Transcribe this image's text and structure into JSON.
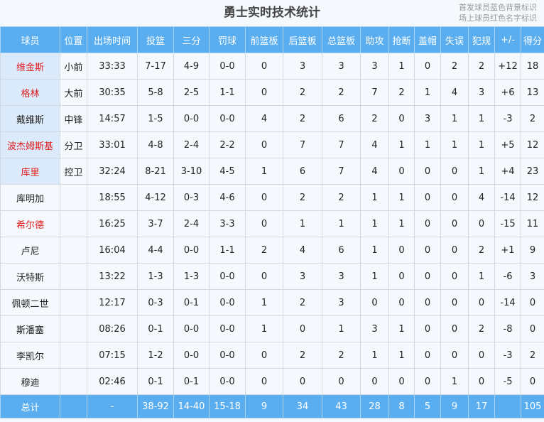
{
  "title": "勇士实时技术统计",
  "notes": [
    "首发球员蓝色背景标识",
    "场上球员红色名字标识"
  ],
  "colors": {
    "header": "#5aaef0",
    "starter_bg": "#dcebfb",
    "on_court_name": "#e01e1e"
  },
  "columns": [
    "球员",
    "位置",
    "出场时间",
    "投篮",
    "三分",
    "罚球",
    "前篮板",
    "后篮板",
    "总篮板",
    "助攻",
    "抢断",
    "盖帽",
    "失误",
    "犯规",
    "+/-",
    "得分"
  ],
  "rows": [
    {
      "starter": true,
      "on_court": true,
      "cells": [
        "维金斯",
        "小前",
        "33:33",
        "7-17",
        "4-9",
        "0-0",
        "0",
        "3",
        "3",
        "3",
        "1",
        "0",
        "2",
        "2",
        "+12",
        "18"
      ]
    },
    {
      "starter": true,
      "on_court": true,
      "cells": [
        "格林",
        "大前",
        "30:35",
        "5-8",
        "2-5",
        "1-1",
        "0",
        "2",
        "2",
        "7",
        "2",
        "1",
        "4",
        "3",
        "+6",
        "13"
      ]
    },
    {
      "starter": true,
      "on_court": false,
      "cells": [
        "戴维斯",
        "中锋",
        "14:57",
        "1-5",
        "0-0",
        "0-0",
        "4",
        "2",
        "6",
        "2",
        "0",
        "3",
        "1",
        "1",
        "-3",
        "2"
      ]
    },
    {
      "starter": true,
      "on_court": true,
      "cells": [
        "波杰姆斯基",
        "分卫",
        "33:01",
        "4-8",
        "2-4",
        "2-2",
        "0",
        "7",
        "7",
        "4",
        "1",
        "1",
        "1",
        "1",
        "+5",
        "12"
      ]
    },
    {
      "starter": true,
      "on_court": true,
      "cells": [
        "库里",
        "控卫",
        "32:24",
        "8-21",
        "3-10",
        "4-5",
        "1",
        "6",
        "7",
        "4",
        "0",
        "0",
        "0",
        "1",
        "+4",
        "23"
      ]
    },
    {
      "starter": false,
      "on_court": false,
      "cells": [
        "库明加",
        "",
        "18:55",
        "4-12",
        "0-3",
        "4-6",
        "0",
        "2",
        "2",
        "1",
        "1",
        "0",
        "0",
        "4",
        "-14",
        "12"
      ]
    },
    {
      "starter": false,
      "on_court": true,
      "cells": [
        "希尔德",
        "",
        "16:25",
        "3-7",
        "2-4",
        "3-3",
        "0",
        "1",
        "1",
        "1",
        "1",
        "0",
        "0",
        "0",
        "-15",
        "11"
      ]
    },
    {
      "starter": false,
      "on_court": false,
      "cells": [
        "卢尼",
        "",
        "16:04",
        "4-4",
        "0-0",
        "1-1",
        "2",
        "4",
        "6",
        "1",
        "0",
        "0",
        "0",
        "2",
        "+1",
        "9"
      ]
    },
    {
      "starter": false,
      "on_court": false,
      "cells": [
        "沃特斯",
        "",
        "13:22",
        "1-3",
        "1-3",
        "0-0",
        "0",
        "3",
        "3",
        "1",
        "0",
        "0",
        "0",
        "1",
        "-6",
        "3"
      ]
    },
    {
      "starter": false,
      "on_court": false,
      "cells": [
        "佩顿二世",
        "",
        "12:17",
        "0-3",
        "0-1",
        "0-0",
        "1",
        "2",
        "3",
        "0",
        "0",
        "0",
        "0",
        "0",
        "-14",
        "0"
      ]
    },
    {
      "starter": false,
      "on_court": false,
      "cells": [
        "斯潘塞",
        "",
        "08:26",
        "0-1",
        "0-0",
        "0-0",
        "1",
        "0",
        "1",
        "3",
        "1",
        "0",
        "0",
        "2",
        "-8",
        "0"
      ]
    },
    {
      "starter": false,
      "on_court": false,
      "cells": [
        "李凯尔",
        "",
        "07:15",
        "1-2",
        "0-0",
        "0-0",
        "0",
        "2",
        "2",
        "1",
        "1",
        "0",
        "0",
        "0",
        "-3",
        "2"
      ]
    },
    {
      "starter": false,
      "on_court": false,
      "cells": [
        "穆迪",
        "",
        "02:46",
        "0-1",
        "0-1",
        "0-0",
        "0",
        "0",
        "0",
        "0",
        "0",
        "0",
        "1",
        "0",
        "-5",
        "0"
      ]
    }
  ],
  "total": [
    "总计",
    "",
    "-",
    "38-92",
    "14-40",
    "15-18",
    "9",
    "34",
    "43",
    "28",
    "8",
    "5",
    "9",
    "17",
    "",
    "105"
  ]
}
